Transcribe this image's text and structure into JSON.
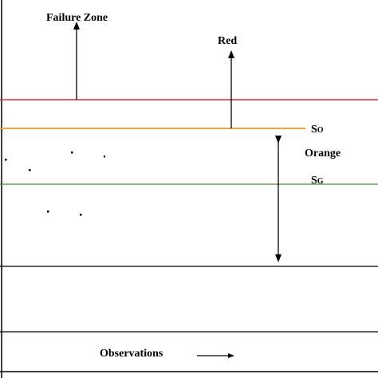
{
  "labels": {
    "failure_zone": "Failure Zone",
    "red": "Red",
    "orange": "Orange",
    "s_o_main": "S",
    "s_o_sub": "O",
    "s_g_main": "S",
    "s_g_sub": "G",
    "observations": "Observations"
  },
  "colors": {
    "red_line": "#cc3333",
    "orange_line": "#f0a830",
    "green_line": "#4a8a3a",
    "black": "#000000"
  }
}
